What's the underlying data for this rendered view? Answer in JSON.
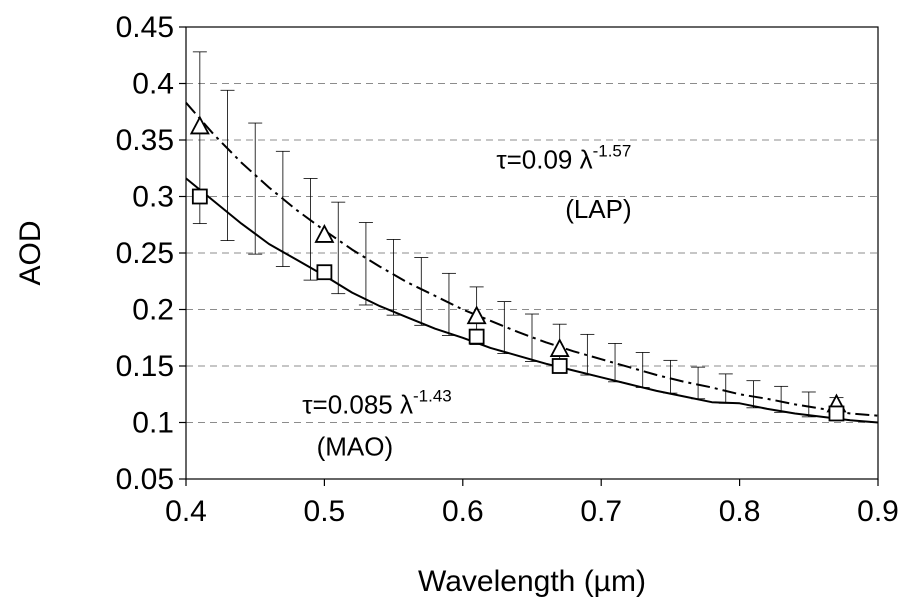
{
  "chart_data": {
    "type": "line",
    "title": "",
    "xlabel": "Wavelength (µm)",
    "ylabel": "AOD",
    "xlim": [
      0.4,
      0.9
    ],
    "ylim": [
      0.05,
      0.45
    ],
    "x_ticks": [
      0.4,
      0.5,
      0.6,
      0.7,
      0.8,
      0.9
    ],
    "x_tick_labels": [
      "0.4",
      "0.5",
      "0.6",
      "0.7",
      "0.8",
      "0.9"
    ],
    "y_ticks": [
      0.05,
      0.1,
      0.15,
      0.2,
      0.25,
      0.3,
      0.35,
      0.4,
      0.45
    ],
    "y_tick_labels": [
      "0.05",
      "0.1",
      "0.15",
      "0.2",
      "0.25",
      "0.3",
      "0.35",
      "0.4",
      "0.45"
    ],
    "grid": {
      "horizontal_dashed": true
    },
    "series": [
      {
        "key": "lap_points",
        "marker": "triangle",
        "x": [
          0.41,
          0.5,
          0.61,
          0.67,
          0.87
        ],
        "y": [
          0.362,
          0.266,
          0.194,
          0.165,
          0.116
        ]
      },
      {
        "key": "mao_points",
        "marker": "square",
        "x": [
          0.41,
          0.5,
          0.61,
          0.67,
          0.87
        ],
        "y": [
          0.3,
          0.233,
          0.176,
          0.15,
          0.108
        ]
      },
      {
        "key": "lap_fit",
        "line_style": "dashed",
        "x": [
          0.4,
          0.42,
          0.44,
          0.46,
          0.48,
          0.5,
          0.52,
          0.54,
          0.56,
          0.58,
          0.6,
          0.62,
          0.64,
          0.66,
          0.68,
          0.7,
          0.72,
          0.74,
          0.76,
          0.78,
          0.8,
          0.82,
          0.84,
          0.86,
          0.88,
          0.9
        ],
        "y": [
          0.383,
          0.355,
          0.33,
          0.308,
          0.288,
          0.27,
          0.253,
          0.238,
          0.224,
          0.212,
          0.2,
          0.19,
          0.18,
          0.171,
          0.163,
          0.156,
          0.149,
          0.142,
          0.136,
          0.131,
          0.125,
          0.121,
          0.116,
          0.112,
          0.108,
          0.106
        ]
      },
      {
        "key": "mao_fit",
        "line_style": "solid",
        "x": [
          0.4,
          0.42,
          0.44,
          0.46,
          0.48,
          0.5,
          0.52,
          0.54,
          0.56,
          0.58,
          0.6,
          0.62,
          0.64,
          0.66,
          0.68,
          0.7,
          0.72,
          0.74,
          0.76,
          0.78,
          0.8,
          0.82,
          0.84,
          0.86,
          0.88,
          0.9
        ],
        "y": [
          0.316,
          0.296,
          0.276,
          0.258,
          0.244,
          0.23,
          0.215,
          0.203,
          0.193,
          0.183,
          0.175,
          0.166,
          0.159,
          0.152,
          0.146,
          0.14,
          0.134,
          0.128,
          0.123,
          0.118,
          0.117,
          0.112,
          0.108,
          0.105,
          0.102,
          0.1
        ]
      }
    ],
    "error_bars": {
      "x": [
        0.41,
        0.43,
        0.45,
        0.47,
        0.49,
        0.51,
        0.53,
        0.55,
        0.57,
        0.59,
        0.61,
        0.63,
        0.65,
        0.67,
        0.69,
        0.71,
        0.73,
        0.75,
        0.77,
        0.79,
        0.81,
        0.83,
        0.85,
        0.87
      ],
      "y_upper": [
        0.428,
        0.394,
        0.365,
        0.34,
        0.316,
        0.295,
        0.277,
        0.262,
        0.246,
        0.232,
        0.22,
        0.207,
        0.196,
        0.187,
        0.178,
        0.17,
        0.162,
        0.155,
        0.149,
        0.143,
        0.137,
        0.132,
        0.127,
        0.122
      ],
      "y_lower": [
        0.276,
        0.261,
        0.249,
        0.238,
        0.226,
        0.214,
        0.204,
        0.195,
        0.186,
        0.177,
        0.169,
        0.161,
        0.154,
        0.147,
        0.142,
        0.136,
        0.131,
        0.126,
        0.121,
        0.117,
        0.113,
        0.109,
        0.105,
        0.102
      ]
    },
    "annotations": [
      {
        "key": "lap_eq",
        "text": "τ=0.09 λ",
        "sup": "-1.57",
        "x": 0.673,
        "y": 0.325
      },
      {
        "key": "lap_name",
        "text": "(LAP)",
        "x": 0.698,
        "y": 0.281
      },
      {
        "key": "mao_eq",
        "text": "τ=0.085 λ",
        "sup": "-1.43",
        "x": 0.538,
        "y": 0.108
      },
      {
        "key": "mao_name",
        "text": "(MAO)",
        "x": 0.522,
        "y": 0.071
      }
    ]
  }
}
